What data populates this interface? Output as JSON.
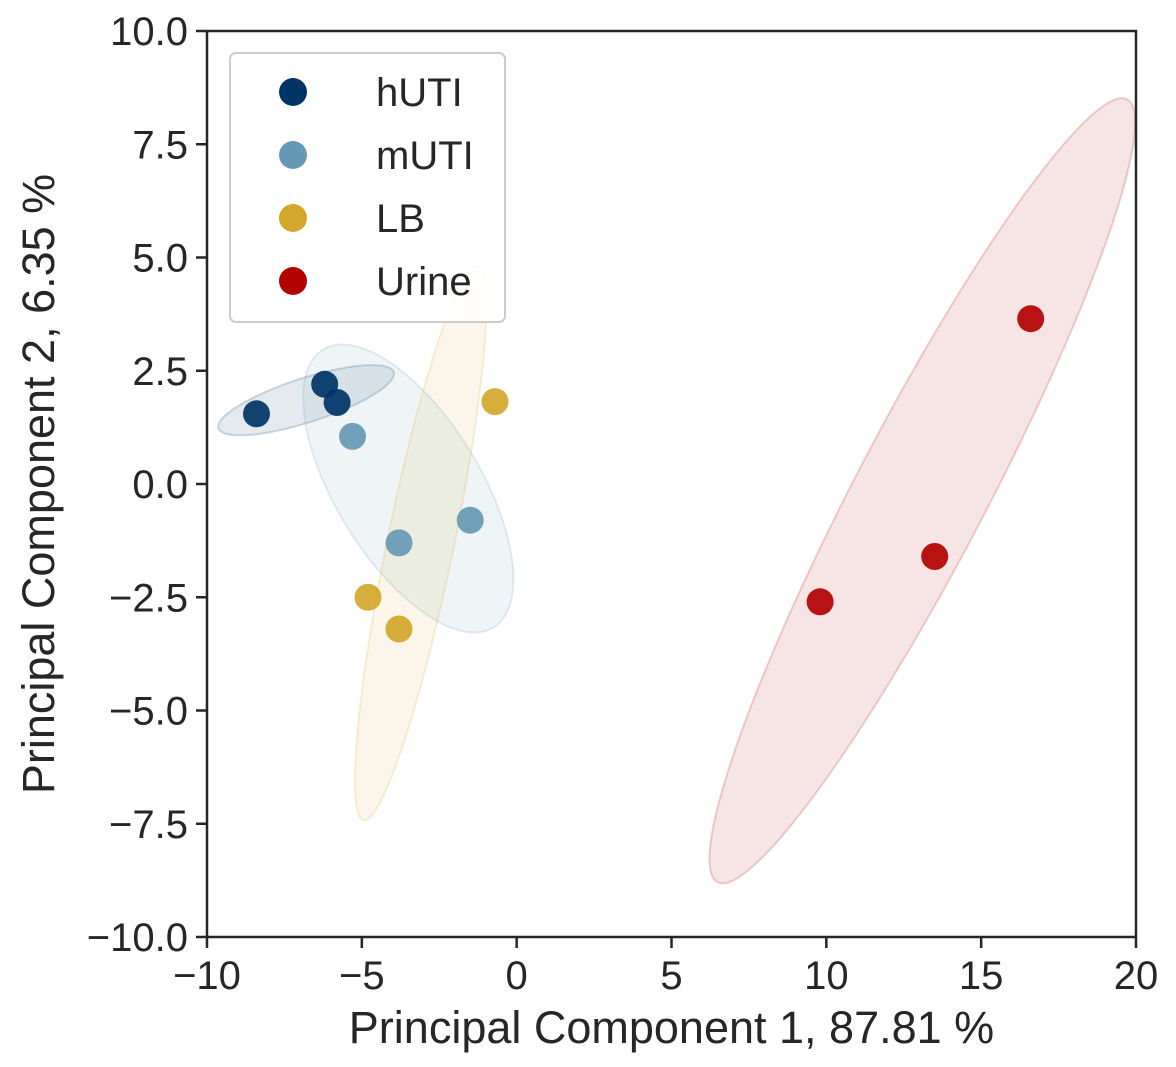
{
  "chart_data": {
    "type": "scatter",
    "title": "",
    "xlabel": "Principal Component 1, 87.81 %",
    "ylabel": "Principal Component 2, 6.35 %",
    "xlim": [
      -10,
      20
    ],
    "ylim": [
      -10,
      10
    ],
    "xticks": [
      -10,
      -5,
      0,
      5,
      10,
      15,
      20
    ],
    "yticks": [
      -10,
      -7.5,
      -5,
      -2.5,
      0,
      2.5,
      5,
      7.5,
      10
    ],
    "xtick_labels": [
      "−10",
      "−5",
      "0",
      "5",
      "10",
      "15",
      "20"
    ],
    "ytick_labels": [
      "−10.0",
      "−7.5",
      "−5.0",
      "−2.5",
      "0.0",
      "2.5",
      "5.0",
      "7.5",
      "10.0"
    ],
    "grid": false,
    "legend_position": "top-left",
    "series": [
      {
        "name": "hUTI",
        "color": "#003466",
        "points": [
          [
            -8.4,
            1.55
          ],
          [
            -6.2,
            2.2
          ],
          [
            -5.8,
            1.8
          ]
        ],
        "ellipse": {
          "center": [
            -6.8,
            1.85
          ],
          "semi_axes": [
            2.9,
            0.5
          ],
          "angle_deg": 12
        }
      },
      {
        "name": "mUTI",
        "color": "#6699b4",
        "points": [
          [
            -5.3,
            1.05
          ],
          [
            -3.8,
            -1.3
          ],
          [
            -1.5,
            -0.8
          ]
        ],
        "ellipse": {
          "center": [
            -3.5,
            -0.1
          ],
          "semi_axes": [
            4.2,
            2.0
          ],
          "angle_deg": -42
        }
      },
      {
        "name": "LB",
        "color": "#d4a62a",
        "points": [
          [
            -0.7,
            1.82
          ],
          [
            -4.8,
            -2.5
          ],
          [
            -3.8,
            -3.2
          ]
        ],
        "ellipse": {
          "center": [
            -3.1,
            -1.3
          ],
          "semi_axes": [
            6.4,
            1.05
          ],
          "angle_deg": 73
        }
      },
      {
        "name": "Urine",
        "color": "#b30000",
        "points": [
          [
            9.8,
            -2.6
          ],
          [
            13.5,
            -1.6
          ],
          [
            16.6,
            3.65
          ]
        ],
        "ellipse": {
          "center": [
            13.1,
            -0.15
          ],
          "semi_axes": [
            10.9,
            1.9
          ],
          "angle_deg": 52
        }
      }
    ]
  }
}
